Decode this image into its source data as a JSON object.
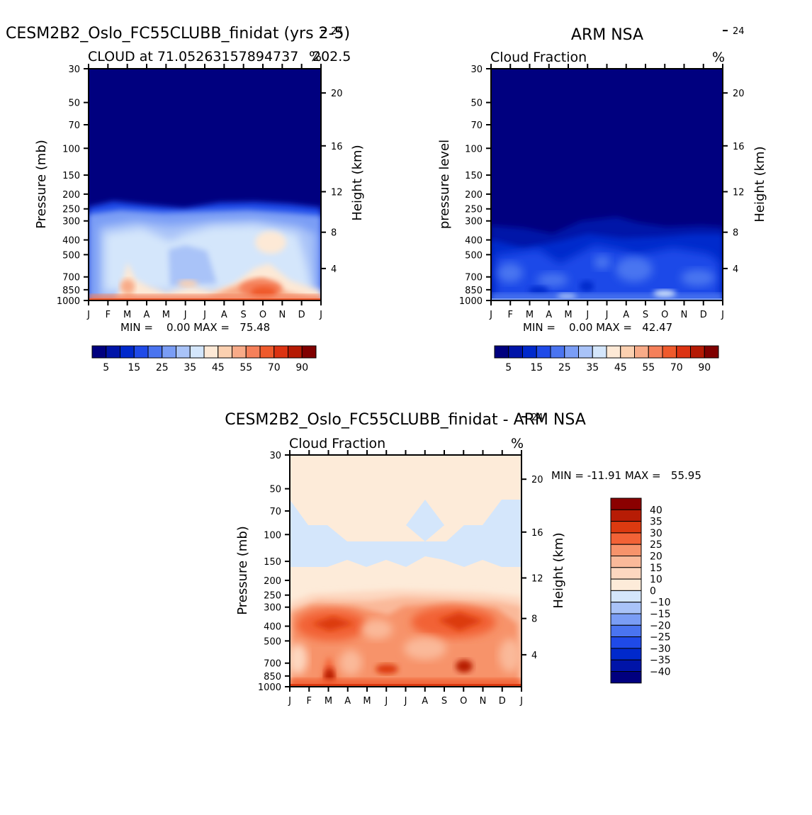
{
  "chart_data": [
    {
      "type": "heatmap",
      "title": "CESM2B2_Oslo_FC55CLUBB_finidat (yrs 2-5)",
      "subtitle_left": "CLOUD at 71.05263157894737",
      "subtitle_right": "202.5",
      "units": "%",
      "ylabel": "Pressure (mb)",
      "ylabel_right": "Height (km)",
      "x_ticks": [
        "J",
        "F",
        "M",
        "A",
        "M",
        "J",
        "J",
        "A",
        "S",
        "O",
        "N",
        "D",
        "J"
      ],
      "y_ticks": [
        "30",
        "50",
        "70",
        "100",
        "150",
        "200",
        "250",
        "300",
        "400",
        "500",
        "700",
        "850",
        "1000"
      ],
      "y_ticks_right": [
        "24",
        "20",
        "16",
        "12",
        "8",
        "4"
      ],
      "min_max": "MIN =    0.00 MAX =   75.48",
      "colorbar_labels": [
        "5",
        "15",
        "25",
        "35",
        "45",
        "55",
        "70",
        "90"
      ]
    },
    {
      "type": "heatmap",
      "title": "ARM NSA",
      "subtitle_left": "Cloud Fraction",
      "units": "%",
      "ylabel": "pressure level",
      "ylabel_right": "Height (km)",
      "x_ticks": [
        "J",
        "F",
        "M",
        "A",
        "M",
        "J",
        "J",
        "A",
        "S",
        "O",
        "N",
        "D",
        "J"
      ],
      "y_ticks": [
        "30",
        "50",
        "70",
        "100",
        "150",
        "200",
        "250",
        "300",
        "400",
        "500",
        "700",
        "850",
        "1000"
      ],
      "y_ticks_right": [
        "24",
        "20",
        "16",
        "12",
        "8",
        "4"
      ],
      "min_max": "MIN =    0.00 MAX =   42.47",
      "colorbar_labels": [
        "5",
        "15",
        "25",
        "35",
        "45",
        "55",
        "70",
        "90"
      ]
    },
    {
      "type": "heatmap",
      "title": "CESM2B2_Oslo_FC55CLUBB_finidat - ARM NSA",
      "subtitle_left": "Cloud Fraction",
      "units": "%",
      "ylabel": "Pressure (mb)",
      "ylabel_right": "Height (km)",
      "x_ticks": [
        "J",
        "F",
        "M",
        "A",
        "M",
        "J",
        "J",
        "A",
        "S",
        "O",
        "N",
        "D",
        "J"
      ],
      "y_ticks": [
        "30",
        "50",
        "70",
        "100",
        "150",
        "200",
        "250",
        "300",
        "400",
        "500",
        "700",
        "850",
        "1000"
      ],
      "y_ticks_right": [
        "24",
        "20",
        "16",
        "12",
        "8",
        "4"
      ],
      "min_max": "MIN = -11.91 MAX =   55.95",
      "colorbar_labels": [
        "40",
        "35",
        "30",
        "25",
        "20",
        "15",
        "10",
        "0",
        "-10",
        "-15",
        "-20",
        "-25",
        "-30",
        "-35",
        "-40"
      ]
    }
  ],
  "colors": {
    "seq": [
      "#00007f",
      "#0014a8",
      "#0029cc",
      "#1f4ae8",
      "#4a74f0",
      "#7a9df5",
      "#a9c3f8",
      "#d4e6fb",
      "#fde9d6",
      "#fbd0b0",
      "#f8ab88",
      "#f5805a",
      "#ef5a2c",
      "#dc3312",
      "#b51a04",
      "#800000"
    ],
    "div": [
      "#8b0000",
      "#b71c05",
      "#dc3a10",
      "#f26236",
      "#f7936b",
      "#fab99a",
      "#fdd7c0",
      "#fdebd9",
      "#d4e6fb",
      "#a9c3f8",
      "#7a9df5",
      "#4a74f0",
      "#1f4ae8",
      "#0029cc",
      "#0014a8",
      "#00007f"
    ]
  }
}
